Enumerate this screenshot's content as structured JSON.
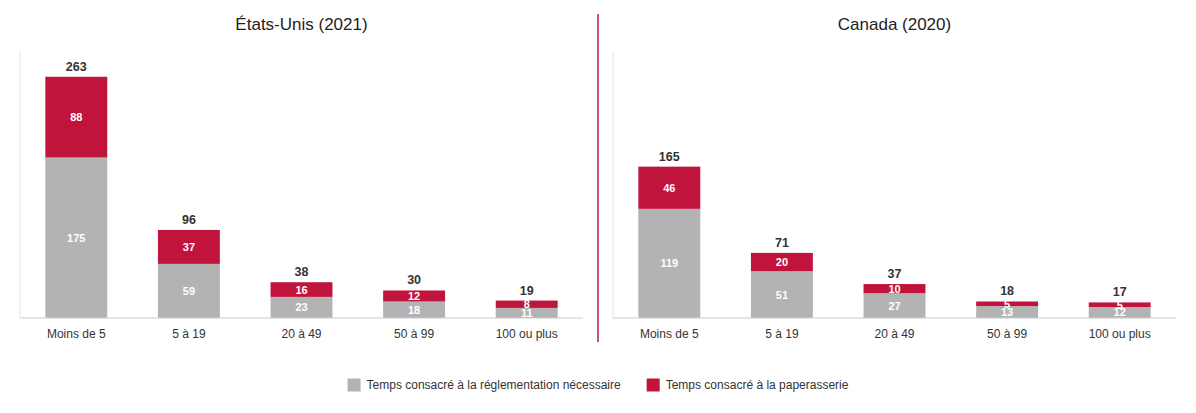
{
  "chart_data": [
    {
      "type": "bar",
      "title": "États-Unis (2021)",
      "stacked": true,
      "data_labels": true,
      "tick_labels": "x",
      "grid": false,
      "legend": "bottom",
      "categories": [
        "Moins de 5",
        "5 à 19",
        "20 à 49",
        "50 à 99",
        "100 ou plus"
      ],
      "series": [
        {
          "name": "Temps consacré à la réglementation nécessaire",
          "color": "#b3b3b3",
          "values": [
            175,
            59,
            23,
            18,
            11
          ]
        },
        {
          "name": "Temps consacré à la paperasserie",
          "color": "#c0143c",
          "values": [
            88,
            37,
            16,
            12,
            8
          ]
        }
      ],
      "totals": [
        263,
        96,
        38,
        30,
        19
      ],
      "ylim": [
        0,
        290
      ]
    },
    {
      "type": "bar",
      "title": "Canada (2020)",
      "stacked": true,
      "data_labels": true,
      "tick_labels": "x",
      "grid": false,
      "legend": "bottom",
      "categories": [
        "Moins de 5",
        "5 à 19",
        "20 à 49",
        "50 à 99",
        "100 ou plus"
      ],
      "series": [
        {
          "name": "Temps consacré à la réglementation nécessaire",
          "color": "#b3b3b3",
          "values": [
            119,
            51,
            27,
            13,
            12
          ]
        },
        {
          "name": "Temps consacré à la paperasserie",
          "color": "#c0143c",
          "values": [
            46,
            20,
            10,
            5,
            5
          ]
        }
      ],
      "totals": [
        165,
        71,
        37,
        18,
        17
      ],
      "ylim": [
        0,
        290
      ]
    }
  ]
}
